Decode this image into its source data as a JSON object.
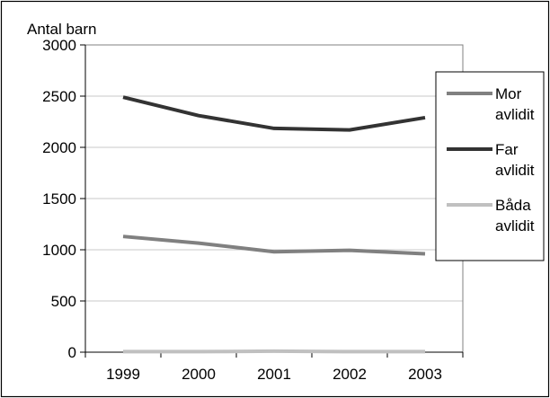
{
  "chart_data": {
    "type": "line",
    "title": "",
    "ylabel": "Antal barn",
    "xlabel": "",
    "categories": [
      "1999",
      "2000",
      "2001",
      "2002",
      "2003"
    ],
    "ylim": [
      0,
      3000
    ],
    "yticks": [
      "0",
      "500",
      "1000",
      "1500",
      "2000",
      "2500",
      "3000"
    ],
    "grid": true,
    "legend_position": "right",
    "series": [
      {
        "name_lines": [
          "Mor",
          "avlidit"
        ],
        "color": "#808080",
        "values": [
          1130,
          1065,
          980,
          995,
          960
        ]
      },
      {
        "name_lines": [
          "Far",
          "avlidit"
        ],
        "color": "#333333",
        "values": [
          2490,
          2310,
          2185,
          2170,
          2290
        ]
      },
      {
        "name_lines": [
          "Båda",
          "avlidit"
        ],
        "color": "#c0c0c0",
        "values": [
          5,
          5,
          10,
          5,
          5
        ]
      }
    ]
  }
}
